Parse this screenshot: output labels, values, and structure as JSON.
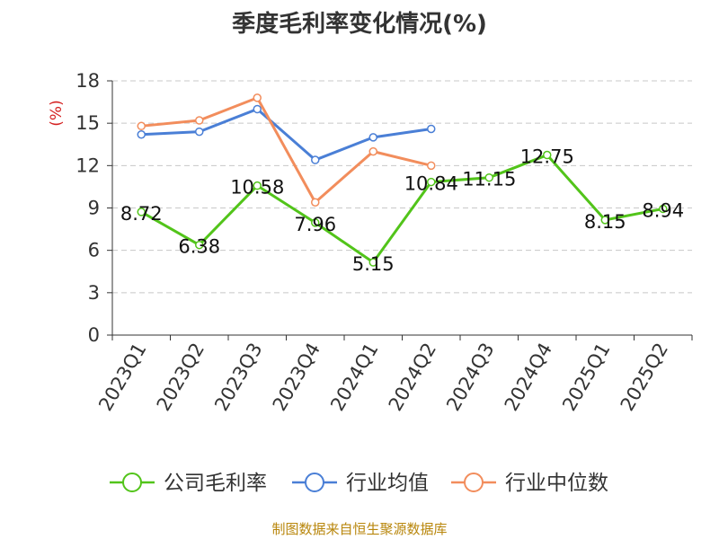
{
  "chart_data": {
    "type": "line",
    "title": "季度毛利率变化情况(%)",
    "ylabel": "(%)",
    "xlabel": "",
    "categories": [
      "2023Q1",
      "2023Q2",
      "2023Q3",
      "2023Q4",
      "2024Q1",
      "2024Q2",
      "2024Q3",
      "2024Q4",
      "2025Q1",
      "2025Q2"
    ],
    "yticks": [
      "0",
      "3",
      "6",
      "9",
      "12",
      "15",
      "18"
    ],
    "ylim": [
      0,
      18
    ],
    "grid": true,
    "legend_position": "bottom",
    "series": [
      {
        "name": "公司毛利率",
        "color": "#52c41a",
        "labeled": true,
        "values": [
          8.72,
          6.38,
          10.58,
          7.96,
          5.15,
          10.84,
          11.15,
          12.75,
          8.15,
          8.94
        ],
        "labels": [
          "8.72",
          "6.38",
          "10.58",
          "7.96",
          "5.15",
          "10.84",
          "11.15",
          "12.75",
          "8.15",
          "8.94"
        ]
      },
      {
        "name": "行业均值",
        "color": "#4a7fd6",
        "labeled": false,
        "values": [
          14.2,
          14.4,
          16.0,
          12.4,
          14.0,
          14.6,
          null,
          null,
          null,
          null
        ]
      },
      {
        "name": "行业中位数",
        "color": "#f28d5c",
        "labeled": false,
        "values": [
          14.8,
          15.2,
          16.8,
          9.4,
          13.0,
          12.0,
          null,
          null,
          null,
          null
        ]
      }
    ]
  },
  "footer": {
    "source": "制图数据来自恒生聚源数据库"
  }
}
